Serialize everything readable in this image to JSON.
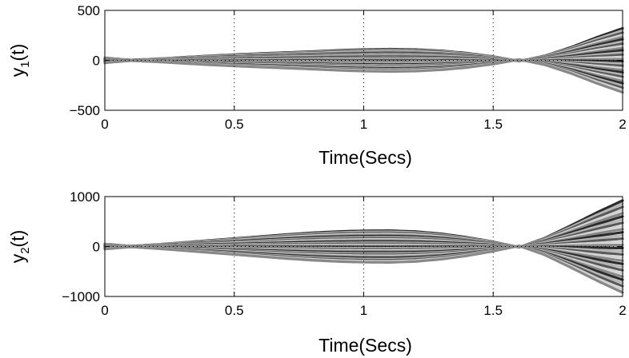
{
  "chart_data": [
    {
      "type": "line",
      "xlabel": "Time(Secs)",
      "ylabel": {
        "main": "y",
        "sub": "1",
        "suffix": "(t)"
      },
      "xlim": [
        0,
        2
      ],
      "ylim": [
        -500,
        500
      ],
      "xticks": [
        0,
        0.5,
        1,
        1.5,
        2
      ],
      "xtick_labels": [
        "0",
        "0.5",
        "1",
        "1.5",
        "2"
      ],
      "yticks": [
        -500,
        0,
        500
      ],
      "ytick_labels": [
        "−500",
        "0",
        "500"
      ],
      "grid": true,
      "series_count": 30,
      "x": [
        0,
        0.1,
        0.2,
        0.3,
        0.4,
        0.5,
        0.6,
        0.7,
        0.8,
        0.9,
        1.0,
        1.1,
        1.2,
        1.3,
        1.4,
        1.5,
        1.6,
        1.7,
        1.8,
        1.9,
        2.0
      ],
      "envelope_upper": [
        25,
        3,
        15,
        30,
        45,
        57,
        68,
        78,
        88,
        100,
        108,
        112,
        108,
        95,
        72,
        38,
        -8,
        45,
        130,
        230,
        320
      ],
      "series_colors": [
        "#2b2b2b",
        "#595959",
        "#888888",
        "#b5b5b5",
        "#d3d3d3"
      ]
    },
    {
      "type": "line",
      "xlabel": "Time(Secs)",
      "ylabel": {
        "main": "y",
        "sub": "2",
        "suffix": "(t)"
      },
      "xlim": [
        0,
        2
      ],
      "ylim": [
        -1000,
        1000
      ],
      "xticks": [
        0,
        0.5,
        1,
        1.5,
        2
      ],
      "xtick_labels": [
        "0",
        "0.5",
        "1",
        "1.5",
        "2"
      ],
      "yticks": [
        -1000,
        0,
        1000
      ],
      "ytick_labels": [
        "−1000",
        "0",
        "1000"
      ],
      "grid": true,
      "series_count": 30,
      "x": [
        0,
        0.1,
        0.2,
        0.3,
        0.4,
        0.5,
        0.6,
        0.7,
        0.8,
        0.9,
        1.0,
        1.1,
        1.2,
        1.3,
        1.4,
        1.5,
        1.6,
        1.7,
        1.8,
        1.9,
        2.0
      ],
      "envelope_upper": [
        50,
        8,
        40,
        80,
        120,
        160,
        200,
        240,
        275,
        300,
        315,
        318,
        300,
        255,
        185,
        95,
        -15,
        170,
        420,
        680,
        920
      ],
      "series_colors": [
        "#2b2b2b",
        "#595959",
        "#888888",
        "#b5b5b5",
        "#d3d3d3"
      ]
    }
  ]
}
